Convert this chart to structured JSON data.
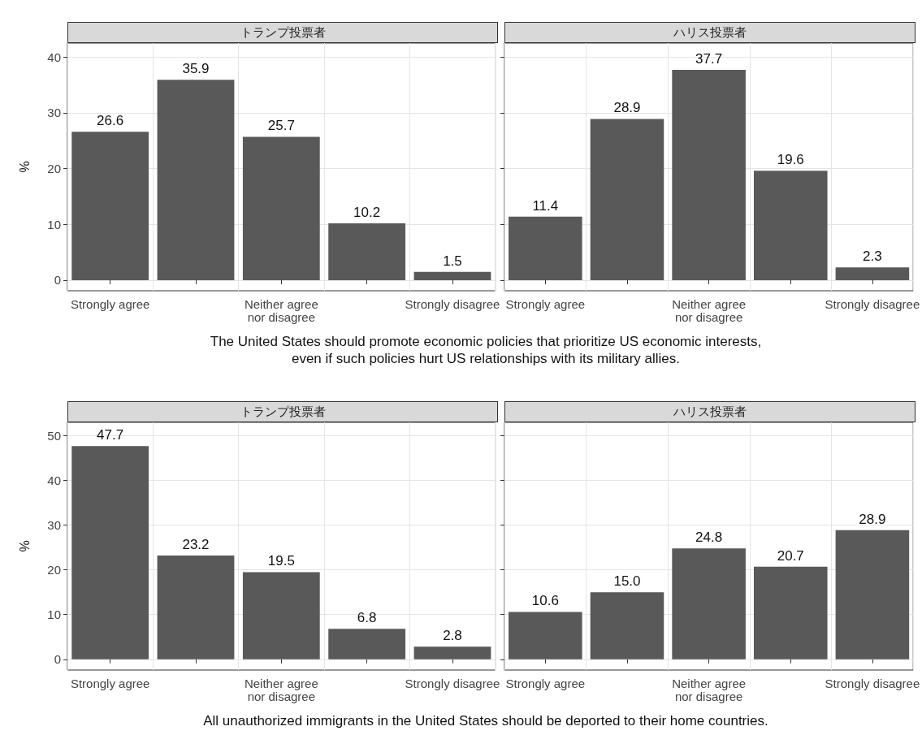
{
  "chart_data": [
    {
      "type": "bar",
      "title": "トランプ投票者",
      "ylabel": "%",
      "xlabel": "The United States should promote economic policies that prioritize US economic interests,\neven if such policies hurt US relationships with its military allies.",
      "categories": [
        "Strongly agree",
        null,
        "Neither agree\nnor disagree",
        null,
        "Strongly disagree"
      ],
      "values": [
        26.6,
        35.9,
        25.7,
        10.2,
        1.5
      ],
      "color": "#595959",
      "data_labels": true,
      "ylim": [
        -1.9,
        42.5
      ],
      "yticks": [
        0,
        10,
        20,
        30,
        40
      ],
      "grid": true
    },
    {
      "type": "bar",
      "title": "ハリス投票者",
      "categories": [
        "Strongly agree",
        null,
        "Neither agree\nnor disagree",
        null,
        "Strongly disagree"
      ],
      "values": [
        11.4,
        28.9,
        37.7,
        19.6,
        2.3
      ],
      "color": "#595959",
      "data_labels": true,
      "ylim": [
        -1.9,
        42.5
      ],
      "yticks": [
        0,
        10,
        20,
        30,
        40
      ],
      "grid": true,
      "tick_labels": "x"
    },
    {
      "type": "bar",
      "title": "トランプ投票者",
      "ylabel": "%",
      "xlabel": "All unauthorized immigrants in the United States should be deported to their home countries.",
      "categories": [
        "Strongly agree",
        null,
        "Neither agree\nnor disagree",
        null,
        "Strongly disagree"
      ],
      "values": [
        47.7,
        23.2,
        19.5,
        6.8,
        2.8
      ],
      "color": "#595959",
      "data_labels": true,
      "ylim": [
        -2.4,
        53
      ],
      "yticks": [
        0,
        10,
        20,
        30,
        40,
        50
      ],
      "grid": true
    },
    {
      "type": "bar",
      "title": "ハリス投票者",
      "categories": [
        "Strongly agree",
        null,
        "Neither agree\nnor disagree",
        null,
        "Strongly disagree"
      ],
      "values": [
        10.6,
        15.0,
        24.8,
        20.7,
        28.9
      ],
      "value_labels": [
        "10.6",
        "15.0",
        "24.8",
        "20.7",
        "28.9"
      ],
      "color": "#595959",
      "ylim": [
        -2.4,
        53
      ],
      "yticks": [
        0,
        10,
        20,
        30,
        40,
        50
      ],
      "grid": true,
      "tick_labels": "x"
    }
  ]
}
